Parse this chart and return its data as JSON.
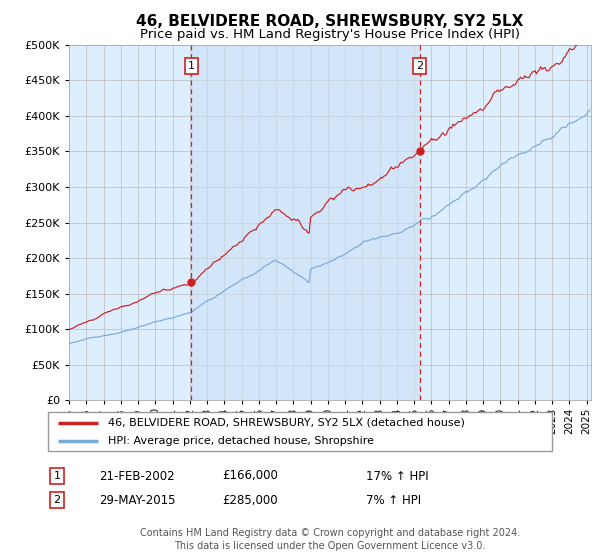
{
  "title": "46, BELVIDERE ROAD, SHREWSBURY, SY2 5LX",
  "subtitle": "Price paid vs. HM Land Registry's House Price Index (HPI)",
  "legend_line1": "46, BELVIDERE ROAD, SHREWSBURY, SY2 5LX (detached house)",
  "legend_line2": "HPI: Average price, detached house, Shropshire",
  "sale1_date": "21-FEB-2002",
  "sale1_price": "£166,000",
  "sale1_hpi": "17% ↑ HPI",
  "sale2_date": "29-MAY-2015",
  "sale2_price": "£285,000",
  "sale2_hpi": "7% ↑ HPI",
  "footer1": "Contains HM Land Registry data © Crown copyright and database right 2024.",
  "footer2": "This data is licensed under the Open Government Licence v3.0.",
  "red_color": "#cc2222",
  "blue_color": "#7aaadd",
  "bg_color": "#ddeeff",
  "grid_color": "#bbbbbb",
  "span_color": "#cce0f5"
}
